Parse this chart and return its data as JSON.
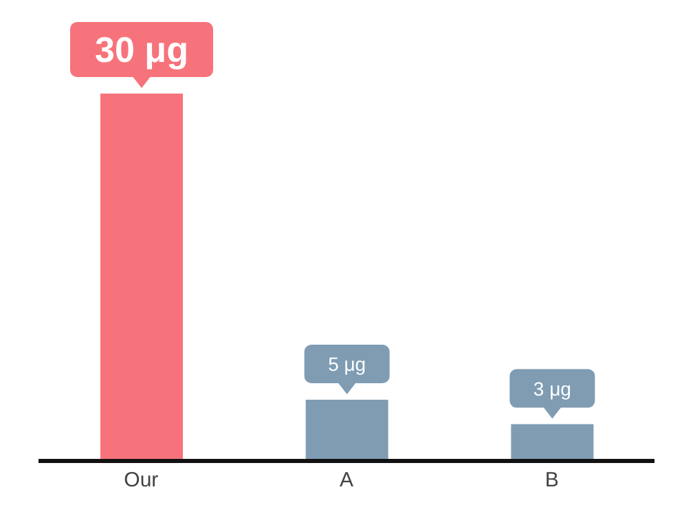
{
  "chart_data": {
    "type": "bar",
    "categories": [
      "Our",
      "A",
      "B"
    ],
    "values": [
      30,
      5,
      3
    ],
    "colors": [
      "#f7737b",
      "#7f9cb3",
      "#7f9cb3"
    ],
    "value_labels": [
      "30 μg",
      "5 μg",
      "3 μg"
    ],
    "tick_labels": "x"
  }
}
